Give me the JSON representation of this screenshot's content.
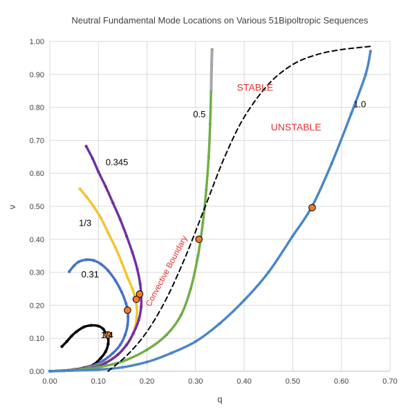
{
  "chart_data": {
    "type": "scatter",
    "title": "Neutral Fundamental Mode Locations on Various 51Bipoltropic Sequences",
    "xlabel": "q",
    "ylabel": "ν",
    "xlim": [
      0,
      0.7
    ],
    "ylim": [
      0,
      1.0
    ],
    "x_ticks": [
      {
        "value": 0.0,
        "label": "0.00"
      },
      {
        "value": 0.1,
        "label": "0.10"
      },
      {
        "value": 0.2,
        "label": "0.20"
      },
      {
        "value": 0.3,
        "label": "0.30"
      },
      {
        "value": 0.4,
        "label": "0.40"
      },
      {
        "value": 0.5,
        "label": "0.50"
      },
      {
        "value": 0.6,
        "label": "0.60"
      },
      {
        "value": 0.7,
        "label": "0.70"
      }
    ],
    "y_ticks": [
      {
        "value": 0.0,
        "label": "0.00"
      },
      {
        "value": 0.1,
        "label": "0.10"
      },
      {
        "value": 0.2,
        "label": "0.20"
      },
      {
        "value": 0.3,
        "label": "0.30"
      },
      {
        "value": 0.4,
        "label": "0.40"
      },
      {
        "value": 0.5,
        "label": "0.50"
      },
      {
        "value": 0.6,
        "label": "0.60"
      },
      {
        "value": 0.7,
        "label": "0.70"
      },
      {
        "value": 0.8,
        "label": "0.80"
      },
      {
        "value": 0.9,
        "label": "0.90"
      },
      {
        "value": 1.0,
        "label": "1.00"
      }
    ],
    "grid": true,
    "series": [
      {
        "label": "1/4",
        "color": "#000000",
        "points": [
          [
            0.025,
            0.075
          ],
          [
            0.035,
            0.09
          ],
          [
            0.045,
            0.107
          ],
          [
            0.055,
            0.12
          ],
          [
            0.07,
            0.134
          ],
          [
            0.085,
            0.139
          ],
          [
            0.1,
            0.137
          ],
          [
            0.11,
            0.128
          ],
          [
            0.115,
            0.115
          ],
          [
            0.12,
            0.1
          ],
          [
            0.12,
            0.082
          ],
          [
            0.115,
            0.06
          ],
          [
            0.105,
            0.04
          ],
          [
            0.09,
            0.02
          ],
          [
            0.07,
            0.01
          ],
          [
            0.05,
            0.005
          ],
          [
            0.03,
            0.002
          ],
          [
            0.0,
            0.0
          ]
        ],
        "label_pos": [
          0.105,
          0.1
        ]
      },
      {
        "label": "0.31",
        "color": "#4472c4",
        "points": [
          [
            0.04,
            0.302
          ],
          [
            0.05,
            0.32
          ],
          [
            0.06,
            0.332
          ],
          [
            0.075,
            0.338
          ],
          [
            0.09,
            0.336
          ],
          [
            0.105,
            0.325
          ],
          [
            0.12,
            0.305
          ],
          [
            0.135,
            0.275
          ],
          [
            0.148,
            0.24
          ],
          [
            0.157,
            0.205
          ],
          [
            0.16,
            0.185
          ],
          [
            0.161,
            0.165
          ],
          [
            0.16,
            0.14
          ],
          [
            0.155,
            0.11
          ],
          [
            0.145,
            0.08
          ],
          [
            0.13,
            0.055
          ],
          [
            0.11,
            0.032
          ],
          [
            0.085,
            0.015
          ],
          [
            0.06,
            0.006
          ],
          [
            0.03,
            0.002
          ],
          [
            0.0,
            0.0
          ]
        ],
        "label_pos": [
          0.065,
          0.285
        ]
      },
      {
        "label": "1/3",
        "color": "#f4c430",
        "points": [
          [
            0.062,
            0.553
          ],
          [
            0.075,
            0.53
          ],
          [
            0.09,
            0.5
          ],
          [
            0.105,
            0.465
          ],
          [
            0.12,
            0.42
          ],
          [
            0.135,
            0.375
          ],
          [
            0.148,
            0.33
          ],
          [
            0.16,
            0.285
          ],
          [
            0.17,
            0.25
          ],
          [
            0.176,
            0.22
          ],
          [
            0.179,
            0.195
          ],
          [
            0.179,
            0.165
          ],
          [
            0.175,
            0.13
          ],
          [
            0.165,
            0.095
          ],
          [
            0.15,
            0.065
          ],
          [
            0.13,
            0.04
          ],
          [
            0.105,
            0.02
          ],
          [
            0.08,
            0.01
          ],
          [
            0.05,
            0.004
          ],
          [
            0.0,
            0.0
          ]
        ],
        "label_pos": [
          0.06,
          0.44
        ]
      },
      {
        "label": "0.345",
        "color": "#7030a0",
        "points": [
          [
            0.075,
            0.682
          ],
          [
            0.088,
            0.645
          ],
          [
            0.1,
            0.605
          ],
          [
            0.115,
            0.56
          ],
          [
            0.13,
            0.51
          ],
          [
            0.145,
            0.46
          ],
          [
            0.158,
            0.41
          ],
          [
            0.17,
            0.36
          ],
          [
            0.18,
            0.31
          ],
          [
            0.186,
            0.265
          ],
          [
            0.188,
            0.23
          ],
          [
            0.188,
            0.195
          ],
          [
            0.183,
            0.155
          ],
          [
            0.172,
            0.115
          ],
          [
            0.158,
            0.08
          ],
          [
            0.14,
            0.05
          ],
          [
            0.115,
            0.025
          ],
          [
            0.09,
            0.012
          ],
          [
            0.06,
            0.005
          ],
          [
            0.0,
            0.0
          ]
        ],
        "label_pos": [
          0.115,
          0.625
        ]
      },
      {
        "label": "0.5",
        "color": "#70ad47",
        "points": [
          [
            0.0,
            0.0
          ],
          [
            0.05,
            0.003
          ],
          [
            0.1,
            0.012
          ],
          [
            0.15,
            0.03
          ],
          [
            0.2,
            0.065
          ],
          [
            0.24,
            0.11
          ],
          [
            0.27,
            0.17
          ],
          [
            0.29,
            0.25
          ],
          [
            0.305,
            0.35
          ],
          [
            0.315,
            0.45
          ],
          [
            0.322,
            0.55
          ],
          [
            0.327,
            0.65
          ],
          [
            0.33,
            0.75
          ],
          [
            0.332,
            0.85
          ],
          [
            0.333,
            0.93
          ],
          [
            0.334,
            0.975
          ]
        ],
        "label_pos": [
          0.295,
          0.77
        ]
      },
      {
        "label": "1.0",
        "color": "#4a86c8",
        "points": [
          [
            0.0,
            0.0
          ],
          [
            0.1,
            0.005
          ],
          [
            0.15,
            0.012
          ],
          [
            0.2,
            0.028
          ],
          [
            0.25,
            0.055
          ],
          [
            0.3,
            0.09
          ],
          [
            0.35,
            0.145
          ],
          [
            0.4,
            0.215
          ],
          [
            0.45,
            0.3
          ],
          [
            0.5,
            0.41
          ],
          [
            0.54,
            0.5
          ],
          [
            0.58,
            0.63
          ],
          [
            0.62,
            0.78
          ],
          [
            0.65,
            0.9
          ],
          [
            0.66,
            0.97
          ]
        ],
        "label_pos": [
          0.625,
          0.8
        ]
      },
      {
        "label": "Convective Boundary",
        "color": "#000000",
        "dashed": true,
        "points": [
          [
            0.12,
            0.0
          ],
          [
            0.16,
            0.05
          ],
          [
            0.2,
            0.12
          ],
          [
            0.24,
            0.22
          ],
          [
            0.28,
            0.35
          ],
          [
            0.32,
            0.5
          ],
          [
            0.36,
            0.65
          ],
          [
            0.4,
            0.77
          ],
          [
            0.45,
            0.87
          ],
          [
            0.5,
            0.93
          ],
          [
            0.55,
            0.96
          ],
          [
            0.6,
            0.975
          ],
          [
            0.66,
            0.985
          ]
        ],
        "label_pos": [
          0.23,
          0.3
        ]
      }
    ],
    "neutral_points": [
      [
        0.12,
        0.11
      ],
      [
        0.16,
        0.185
      ],
      [
        0.178,
        0.218
      ],
      [
        0.185,
        0.234
      ],
      [
        0.307,
        0.4
      ],
      [
        0.54,
        0.496
      ]
    ],
    "annotations": [
      {
        "text": "STABLE",
        "color": "#e03030",
        "pos": [
          0.385,
          0.85
        ]
      },
      {
        "text": "UNSTABLE",
        "color": "#e03030",
        "pos": [
          0.455,
          0.73
        ]
      },
      {
        "text": "Convective Boundary",
        "color": "#e03030",
        "pos": [
          0.245,
          0.3
        ]
      }
    ]
  }
}
